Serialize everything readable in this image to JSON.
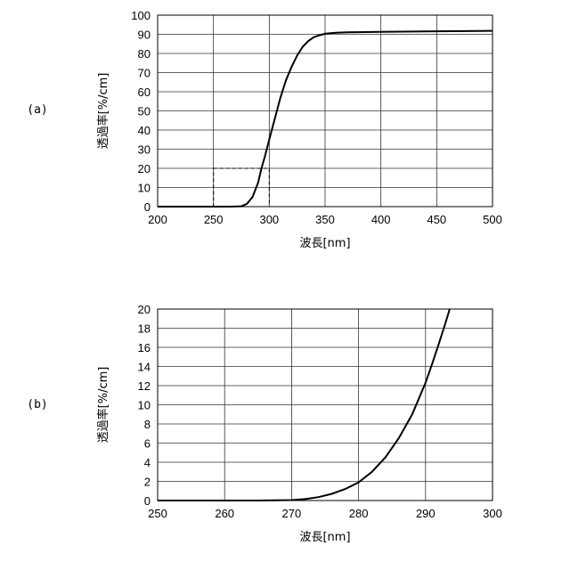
{
  "chart_data": [
    {
      "type": "line",
      "panel_label": "(a)",
      "xlabel": "波長[nm]",
      "ylabel": "透過率[%/cm]",
      "xlim": [
        200,
        500
      ],
      "ylim": [
        0,
        100
      ],
      "x_ticks": [
        200,
        250,
        300,
        350,
        400,
        450,
        500
      ],
      "y_ticks": [
        0,
        10,
        20,
        30,
        40,
        50,
        60,
        70,
        80,
        90,
        100
      ],
      "grid": true,
      "series": [
        {
          "x": [
            200,
            250,
            265,
            275,
            280,
            285,
            290,
            293,
            296,
            300,
            305,
            310,
            315,
            320,
            325,
            330,
            335,
            340,
            345,
            350,
            355,
            360,
            370,
            380,
            400,
            450,
            500
          ],
          "y": [
            0,
            0,
            0,
            0.2,
            1.5,
            5,
            12.5,
            20,
            26,
            35,
            46,
            57,
            66,
            73,
            79,
            83.5,
            86.5,
            88.5,
            89.5,
            90.3,
            90.6,
            90.8,
            91,
            91.1,
            91.3,
            91.6,
            91.8
          ]
        }
      ],
      "zoom_box": {
        "x": [
          250,
          300
        ],
        "y": [
          0,
          20
        ]
      }
    },
    {
      "type": "line",
      "panel_label": "(b)",
      "xlabel": "波長[nm]",
      "ylabel": "透過率[%/cm]",
      "xlim": [
        250,
        300
      ],
      "ylim": [
        0,
        20
      ],
      "x_ticks": [
        250,
        260,
        270,
        280,
        290,
        300
      ],
      "y_ticks": [
        0,
        2,
        4,
        6,
        8,
        10,
        12,
        14,
        16,
        18,
        20
      ],
      "grid": true,
      "series": [
        {
          "x": [
            250,
            260,
            265,
            270,
            272,
            274,
            276,
            278,
            280,
            282,
            284,
            286,
            288,
            290,
            291,
            292,
            293,
            293.6
          ],
          "y": [
            0,
            0,
            0,
            0.05,
            0.15,
            0.35,
            0.7,
            1.2,
            1.9,
            3.0,
            4.5,
            6.5,
            9.0,
            12.3,
            14.3,
            16.4,
            18.6,
            20
          ]
        }
      ]
    }
  ]
}
